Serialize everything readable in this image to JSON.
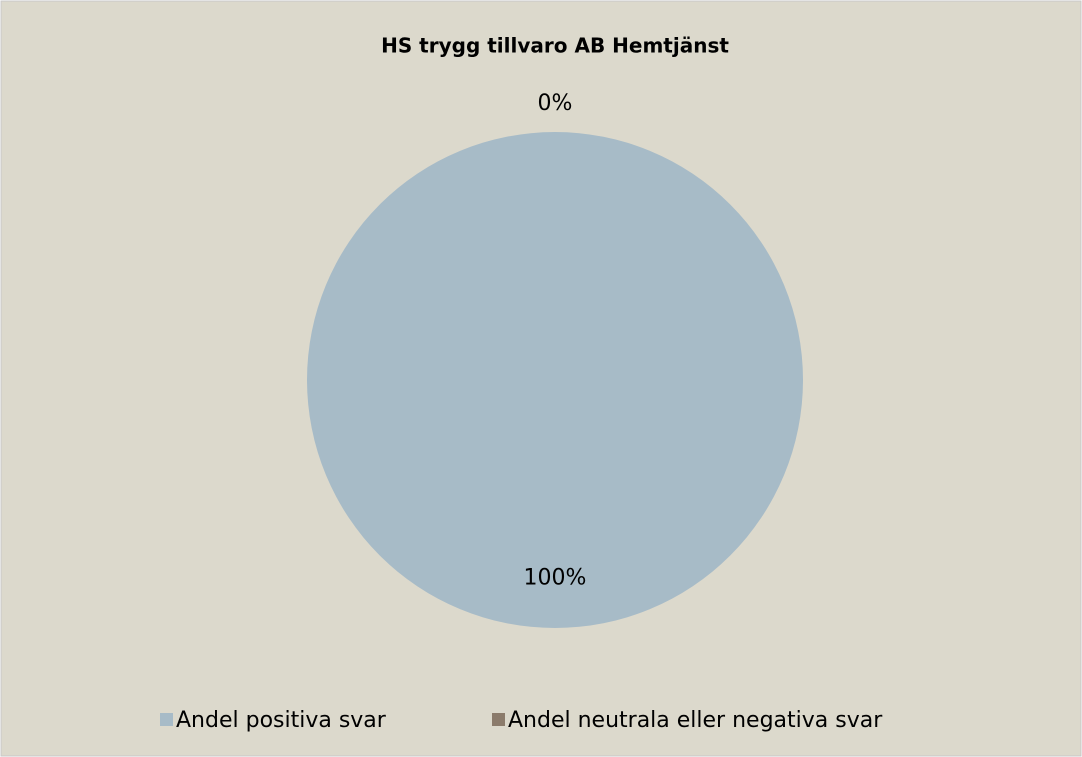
{
  "chart_data": {
    "type": "pie",
    "title": "HS trygg tillvaro AB Hemtjänst",
    "categories": [
      "Andel positiva svar",
      "Andel neutrala eller negativa svar"
    ],
    "values": [
      100,
      0
    ],
    "value_labels": [
      "100%",
      "0%"
    ],
    "colors": [
      "#a7bbc7",
      "#8b7b6b"
    ],
    "legend": "bottom"
  }
}
